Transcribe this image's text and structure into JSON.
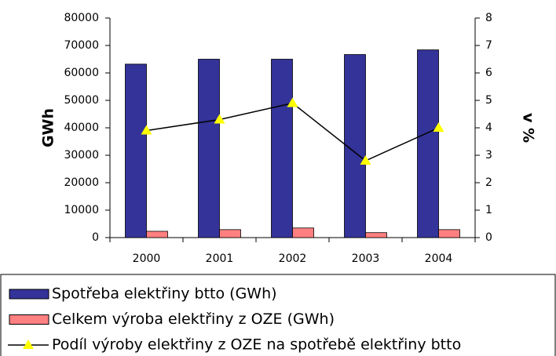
{
  "chart_data": {
    "type": "bar-line",
    "y_label": "GWh",
    "y2_label": "v %",
    "categories": [
      "2000",
      "2001",
      "2002",
      "2003",
      "2004"
    ],
    "series": [
      {
        "name": "Spotřeba elektřiny btto (GWh)",
        "type": "bar",
        "color": "#333399",
        "values": [
          63200,
          65000,
          65000,
          66700,
          68400
        ]
      },
      {
        "name": "Celkem výroba elektřiny z OZE (GWh)",
        "type": "bar",
        "color": "#ff8080",
        "values": [
          2300,
          2900,
          3500,
          1800,
          2900
        ]
      },
      {
        "name": "Podíl výroby elektřiny z OZE na spotřebě elektřiny btto",
        "type": "line",
        "axis": "y2",
        "color": "#000000",
        "marker_color": "#ffff00",
        "values": [
          3.9,
          4.3,
          4.9,
          2.8,
          4.0
        ]
      }
    ],
    "ylim": [
      0,
      80000
    ],
    "yticks": [
      0,
      10000,
      20000,
      30000,
      40000,
      50000,
      60000,
      70000,
      80000
    ],
    "y2lim": [
      0,
      8
    ],
    "y2ticks": [
      0,
      1,
      2,
      3,
      4,
      5,
      6,
      7,
      8
    ]
  }
}
